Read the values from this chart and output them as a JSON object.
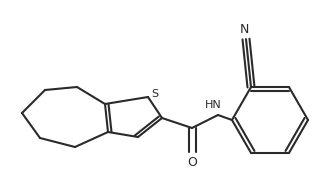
{
  "bg_color": "#ffffff",
  "line_color": "#2a2a2a",
  "line_width": 1.5,
  "fig_width": 3.36,
  "fig_height": 1.9,
  "dpi": 100,
  "S_label": "S",
  "O_label": "O",
  "HN_label": "HN",
  "CN_label": "N",
  "xlim": [
    0,
    336
  ],
  "ylim": [
    0,
    190
  ]
}
